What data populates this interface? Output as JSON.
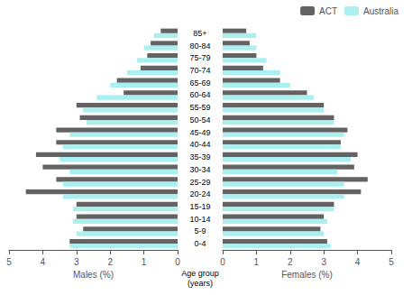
{
  "chart_data": [
    {
      "type": "bar",
      "orientation": "horizontal",
      "xlabel": "Males (%)",
      "ylabel": "Age group\n(years)",
      "categories": [
        "0-4",
        "5-9",
        "10-14",
        "15-19",
        "20-24",
        "25-29",
        "30-34",
        "35-39",
        "40-44",
        "45-49",
        "50-54",
        "55-59",
        "60-64",
        "65-69",
        "70-74",
        "75-79",
        "80-84",
        "85+"
      ],
      "series": [
        {
          "name": "ACT",
          "color": "#636363",
          "values": [
            3.2,
            2.8,
            3.0,
            3.0,
            4.5,
            3.6,
            4.0,
            4.2,
            3.6,
            3.6,
            2.9,
            3.0,
            1.6,
            1.8,
            1.1,
            0.9,
            0.8,
            0.5
          ]
        },
        {
          "name": "Australia",
          "color": "#aaf0f0",
          "values": [
            3.2,
            3.0,
            3.1,
            3.1,
            3.4,
            3.4,
            3.2,
            3.5,
            3.4,
            3.2,
            2.7,
            2.8,
            2.4,
            2.0,
            1.5,
            1.2,
            1.0,
            0.7
          ]
        }
      ],
      "xlim": [
        5,
        0
      ],
      "xticks": [
        5,
        4,
        3,
        2,
        1,
        0
      ],
      "grid": false,
      "tick_labels": "x"
    },
    {
      "type": "bar",
      "orientation": "horizontal",
      "xlabel": "Females (%)",
      "categories": [
        "0-4",
        "5-9",
        "10-14",
        "15-19",
        "20-24",
        "25-29",
        "30-34",
        "35-39",
        "40-44",
        "45-49",
        "50-54",
        "55-59",
        "60-64",
        "65-69",
        "70-74",
        "75-79",
        "80-84",
        "85+"
      ],
      "series": [
        {
          "name": "ACT",
          "color": "#636363",
          "values": [
            3.1,
            2.9,
            3.0,
            3.3,
            4.1,
            4.3,
            3.9,
            4.0,
            3.5,
            3.7,
            3.3,
            3.0,
            2.5,
            1.7,
            1.2,
            1.0,
            0.8,
            0.7
          ]
        },
        {
          "name": "Australia",
          "color": "#aaf0f0",
          "values": [
            3.2,
            3.0,
            3.1,
            3.3,
            3.6,
            3.6,
            3.4,
            3.8,
            3.5,
            3.6,
            3.3,
            3.0,
            2.7,
            2.0,
            1.7,
            1.3,
            1.0,
            1.0
          ]
        }
      ],
      "xlim": [
        0,
        5
      ],
      "xticks": [
        0,
        1,
        2,
        3,
        4,
        5
      ],
      "grid": false,
      "legend": "upper right"
    }
  ]
}
